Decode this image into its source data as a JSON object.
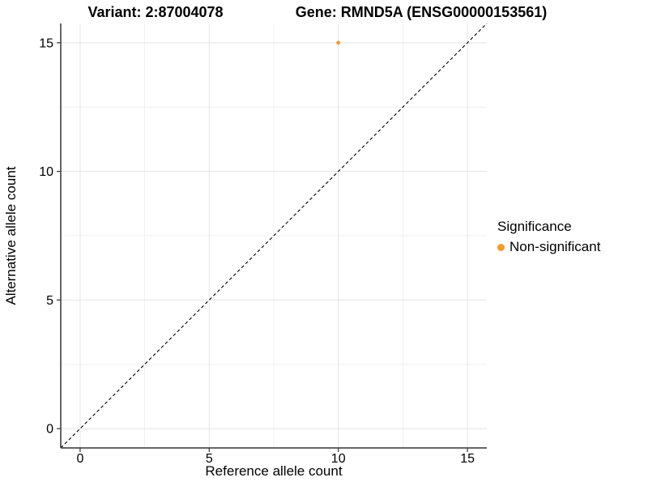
{
  "chart_data": {
    "type": "scatter",
    "titles": {
      "left": "Variant: 2:87004078",
      "right": "Gene: RMND5A (ENSG00000153561)"
    },
    "xlabel": "Reference allele count",
    "ylabel": "Alternative allele count",
    "xlim": [
      -0.75,
      15.75
    ],
    "ylim": [
      -0.75,
      15.75
    ],
    "x_ticks": [
      0,
      5,
      10,
      15
    ],
    "y_ticks": [
      0,
      5,
      10,
      15
    ],
    "x_minor": [
      2.5,
      7.5,
      12.5
    ],
    "y_minor": [
      2.5,
      7.5,
      12.5
    ],
    "grid": true,
    "points": [
      {
        "x": 10,
        "y": 15,
        "series": "Non-significant"
      }
    ],
    "identity_line": {
      "style": "dashed",
      "color": "#000000"
    },
    "legend": {
      "title": "Significance",
      "position": "right",
      "entries": [
        {
          "label": "Non-significant",
          "color": "#F89B28"
        }
      ]
    },
    "colors": {
      "background": "#FFFFFF",
      "grid_major": "#E4E4E4",
      "grid_minor": "#EFEFEF",
      "axis_line": "#333333",
      "text": "#000000"
    }
  }
}
